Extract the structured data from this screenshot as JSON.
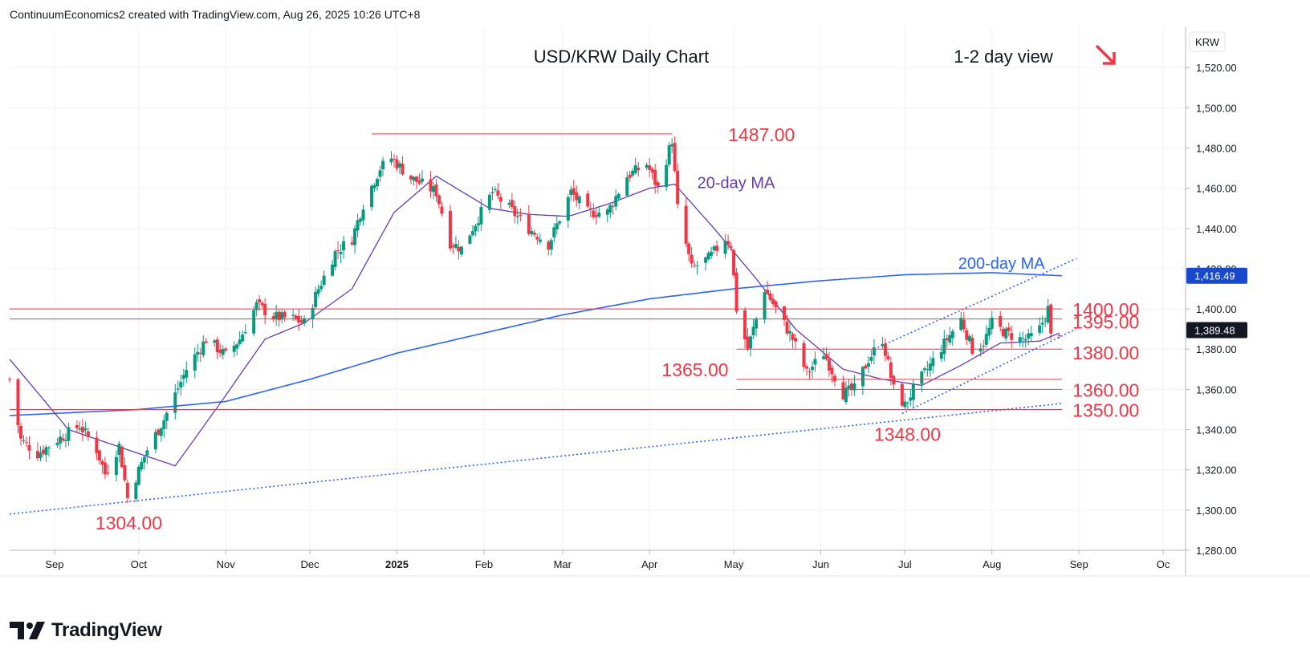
{
  "header": {
    "credit": "ContinuumEconomics2 created with TradingView.com, Aug 26, 2025 10:26 UTC+8"
  },
  "brand": {
    "name": "TradingView",
    "icon": "tradingview-logo-icon"
  },
  "colors": {
    "bull": "#089981",
    "bear": "#f23645",
    "ma20": "#673ab7",
    "ma200": "#2962ff",
    "level": "#f23645",
    "trend": "#2962ff",
    "price_badge": "#131722",
    "ma200_badge": "#1848cc"
  },
  "chart_data": {
    "type": "candlestick",
    "title": "USD/KRW Daily Chart",
    "view_label": "1-2 day view",
    "view_direction_icon": "arrow-down-right-icon",
    "currency_label": "KRW",
    "ylim": [
      1280,
      1540
    ],
    "y_ticks": [
      1280,
      1300,
      1320,
      1340,
      1360,
      1380,
      1400,
      1420,
      1440,
      1460,
      1480,
      1500,
      1520
    ],
    "y_tick_labels": [
      "1,280.00",
      "1,300.00",
      "1,320.00",
      "1,340.00",
      "1,360.00",
      "1,380.00",
      "1,400.00",
      "1,420.00",
      "1,440.00",
      "1,460.00",
      "1,480.00",
      "1,500.00",
      "1,520.00"
    ],
    "x_range": [
      "2024-08-16",
      "2025-10-09"
    ],
    "x_ticks": [
      {
        "date": "2024-09-01",
        "label": "Sep"
      },
      {
        "date": "2024-10-01",
        "label": "Oct"
      },
      {
        "date": "2024-11-01",
        "label": "Nov"
      },
      {
        "date": "2024-12-01",
        "label": "Dec"
      },
      {
        "date": "2025-01-01",
        "label": "2025"
      },
      {
        "date": "2025-02-01",
        "label": "Feb"
      },
      {
        "date": "2025-03-01",
        "label": "Mar"
      },
      {
        "date": "2025-04-01",
        "label": "Apr"
      },
      {
        "date": "2025-05-01",
        "label": "May"
      },
      {
        "date": "2025-06-01",
        "label": "Jun"
      },
      {
        "date": "2025-07-01",
        "label": "Jul"
      },
      {
        "date": "2025-08-01",
        "label": "Aug"
      },
      {
        "date": "2025-09-01",
        "label": "Sep"
      },
      {
        "date": "2025-10-01",
        "label": "Oc"
      }
    ],
    "price_path": [
      [
        "2024-08-16",
        1365
      ],
      [
        "2024-08-20",
        1335
      ],
      [
        "2024-08-26",
        1328
      ],
      [
        "2024-09-02",
        1335
      ],
      [
        "2024-09-10",
        1342
      ],
      [
        "2024-09-16",
        1330
      ],
      [
        "2024-09-19",
        1318
      ],
      [
        "2024-09-24",
        1332
      ],
      [
        "2024-09-27",
        1306
      ],
      [
        "2024-10-04",
        1330
      ],
      [
        "2024-10-10",
        1345
      ],
      [
        "2024-10-18",
        1370
      ],
      [
        "2024-10-25",
        1385
      ],
      [
        "2024-11-01",
        1377
      ],
      [
        "2024-11-06",
        1385
      ],
      [
        "2024-11-12",
        1402
      ],
      [
        "2024-11-18",
        1396
      ],
      [
        "2024-11-25",
        1395
      ],
      [
        "2024-11-29",
        1393
      ],
      [
        "2024-12-04",
        1410
      ],
      [
        "2024-12-10",
        1428
      ],
      [
        "2024-12-16",
        1435
      ],
      [
        "2024-12-20",
        1452
      ],
      [
        "2024-12-26",
        1470
      ],
      [
        "2024-12-30",
        1475
      ],
      [
        "2025-01-06",
        1465
      ],
      [
        "2025-01-10",
        1462
      ],
      [
        "2025-01-15",
        1458
      ],
      [
        "2025-01-20",
        1433
      ],
      [
        "2025-01-24",
        1430
      ],
      [
        "2025-01-31",
        1448
      ],
      [
        "2025-02-04",
        1458
      ],
      [
        "2025-02-10",
        1450
      ],
      [
        "2025-02-17",
        1440
      ],
      [
        "2025-02-24",
        1432
      ],
      [
        "2025-03-04",
        1458
      ],
      [
        "2025-03-10",
        1448
      ],
      [
        "2025-03-17",
        1448
      ],
      [
        "2025-03-24",
        1466
      ],
      [
        "2025-03-31",
        1472
      ],
      [
        "2025-04-04",
        1460
      ],
      [
        "2025-04-09",
        1484
      ],
      [
        "2025-04-11",
        1450
      ],
      [
        "2025-04-16",
        1420
      ],
      [
        "2025-04-22",
        1425
      ],
      [
        "2025-04-28",
        1435
      ],
      [
        "2025-04-30",
        1432
      ],
      [
        "2025-05-02",
        1400
      ],
      [
        "2025-05-06",
        1380
      ],
      [
        "2025-05-12",
        1410
      ],
      [
        "2025-05-16",
        1400
      ],
      [
        "2025-05-22",
        1385
      ],
      [
        "2025-05-27",
        1368
      ],
      [
        "2025-06-02",
        1378
      ],
      [
        "2025-06-09",
        1358
      ],
      [
        "2025-06-13",
        1360
      ],
      [
        "2025-06-18",
        1375
      ],
      [
        "2025-06-23",
        1385
      ],
      [
        "2025-06-27",
        1360
      ],
      [
        "2025-07-01",
        1352
      ],
      [
        "2025-07-04",
        1360
      ],
      [
        "2025-07-10",
        1372
      ],
      [
        "2025-07-16",
        1385
      ],
      [
        "2025-07-21",
        1395
      ],
      [
        "2025-07-25",
        1380
      ],
      [
        "2025-07-29",
        1383
      ],
      [
        "2025-08-01",
        1393
      ],
      [
        "2025-08-06",
        1388
      ],
      [
        "2025-08-11",
        1385
      ],
      [
        "2025-08-14",
        1385
      ],
      [
        "2025-08-18",
        1390
      ],
      [
        "2025-08-21",
        1400
      ],
      [
        "2025-08-22",
        1386
      ],
      [
        "2025-08-25",
        1389
      ]
    ],
    "ma20_path": [
      [
        "2024-08-16",
        1375
      ],
      [
        "2024-09-06",
        1340
      ],
      [
        "2024-09-27",
        1330
      ],
      [
        "2024-10-14",
        1322
      ],
      [
        "2024-10-31",
        1355
      ],
      [
        "2024-11-15",
        1385
      ],
      [
        "2024-11-29",
        1393
      ],
      [
        "2024-12-16",
        1410
      ],
      [
        "2024-12-31",
        1448
      ],
      [
        "2025-01-15",
        1466
      ],
      [
        "2025-02-03",
        1450
      ],
      [
        "2025-02-17",
        1447
      ],
      [
        "2025-03-03",
        1446
      ],
      [
        "2025-03-17",
        1452
      ],
      [
        "2025-04-01",
        1460
      ],
      [
        "2025-04-10",
        1462
      ],
      [
        "2025-04-24",
        1440
      ],
      [
        "2025-05-09",
        1415
      ],
      [
        "2025-05-23",
        1390
      ],
      [
        "2025-06-09",
        1370
      ],
      [
        "2025-06-23",
        1365
      ],
      [
        "2025-07-07",
        1362
      ],
      [
        "2025-07-21",
        1372
      ],
      [
        "2025-08-04",
        1383
      ],
      [
        "2025-08-18",
        1384
      ],
      [
        "2025-08-25",
        1388
      ]
    ],
    "ma200_path": [
      [
        "2024-08-16",
        1347
      ],
      [
        "2024-10-01",
        1350
      ],
      [
        "2024-11-01",
        1354
      ],
      [
        "2024-12-01",
        1365
      ],
      [
        "2025-01-01",
        1378
      ],
      [
        "2025-02-01",
        1388
      ],
      [
        "2025-03-01",
        1397
      ],
      [
        "2025-04-01",
        1405
      ],
      [
        "2025-05-01",
        1410
      ],
      [
        "2025-06-01",
        1414
      ],
      [
        "2025-07-01",
        1417
      ],
      [
        "2025-08-01",
        1418
      ],
      [
        "2025-08-26",
        1416.49
      ]
    ],
    "series_labels": [
      {
        "name": "20-day MA",
        "anchor": [
          "2025-04-18",
          1460
        ]
      },
      {
        "name": "200-day MA",
        "anchor": [
          "2025-07-20",
          1420
        ]
      }
    ],
    "levels": [
      {
        "value": 1487,
        "label": "1487.00",
        "from": "2024-12-23",
        "to": "2025-04-09"
      },
      {
        "value": 1400,
        "label": "1400.00",
        "from": "2024-08-16",
        "to": "2025-08-26"
      },
      {
        "value": 1395,
        "label": "1395.00",
        "from": "2024-08-16",
        "to": "2025-08-26"
      },
      {
        "value": 1380,
        "label": "1380.00",
        "from": "2025-05-02",
        "to": "2025-08-26"
      },
      {
        "value": 1365,
        "label": "1365.00",
        "from": "2025-05-02",
        "to": "2025-08-26"
      },
      {
        "value": 1360,
        "label": "1360.00",
        "from": "2025-05-02",
        "to": "2025-08-26"
      },
      {
        "value": 1350,
        "label": "1350.00",
        "from": "2024-08-16",
        "to": "2025-08-26"
      }
    ],
    "lows": [
      {
        "value": 1304,
        "label": "1304.00",
        "date": "2024-09-27"
      },
      {
        "value": 1348,
        "label": "1348.00",
        "date": "2025-06-30"
      }
    ],
    "trendlines": [
      {
        "from": [
          "2024-08-16",
          1298
        ],
        "to": [
          "2025-08-26",
          1353
        ]
      },
      {
        "from": [
          "2025-06-20",
          1380
        ],
        "to": [
          "2025-08-31",
          1425
        ]
      },
      {
        "from": [
          "2025-06-30",
          1348
        ],
        "to": [
          "2025-08-31",
          1390
        ]
      }
    ],
    "last_price": {
      "value": 1389.48,
      "label": "1,389.48"
    },
    "ma200_value": {
      "value": 1416.49,
      "label": "1,416.49"
    }
  }
}
